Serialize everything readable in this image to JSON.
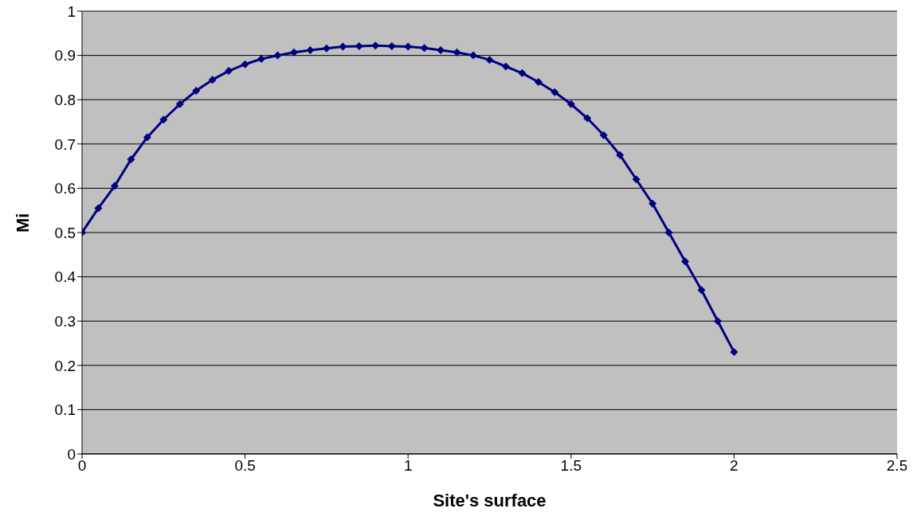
{
  "chart_data": {
    "type": "line",
    "xlabel": "Site's surface",
    "ylabel": "Mi",
    "x": [
      0,
      0.05,
      0.1,
      0.15,
      0.2,
      0.25,
      0.3,
      0.35,
      0.4,
      0.45,
      0.5,
      0.55,
      0.6,
      0.65,
      0.7,
      0.75,
      0.8,
      0.85,
      0.9,
      0.95,
      1.0,
      1.05,
      1.1,
      1.15,
      1.2,
      1.25,
      1.3,
      1.35,
      1.4,
      1.45,
      1.5,
      1.55,
      1.6,
      1.65,
      1.7,
      1.75,
      1.8,
      1.85,
      1.9,
      1.95,
      2.0
    ],
    "series": [
      {
        "color": "#000080",
        "values": [
          0.5,
          0.555,
          0.605,
          0.665,
          0.715,
          0.755,
          0.79,
          0.82,
          0.845,
          0.865,
          0.88,
          0.892,
          0.9,
          0.907,
          0.912,
          0.916,
          0.92,
          0.921,
          0.922,
          0.921,
          0.92,
          0.917,
          0.912,
          0.907,
          0.9,
          0.89,
          0.875,
          0.86,
          0.84,
          0.817,
          0.79,
          0.758,
          0.72,
          0.675,
          0.62,
          0.565,
          0.5,
          0.435,
          0.37,
          0.3,
          0.23
        ]
      }
    ],
    "xlim": [
      0,
      2.5
    ],
    "xticks": [
      0,
      0.5,
      1,
      1.5,
      2,
      2.5
    ],
    "ylim": [
      0,
      1
    ],
    "yticks": [
      0,
      0.1,
      0.2,
      0.3,
      0.4,
      0.5,
      0.6,
      0.7,
      0.8,
      0.9,
      1
    ],
    "grid": "y",
    "marker": "diamond",
    "line_style": "solid"
  }
}
